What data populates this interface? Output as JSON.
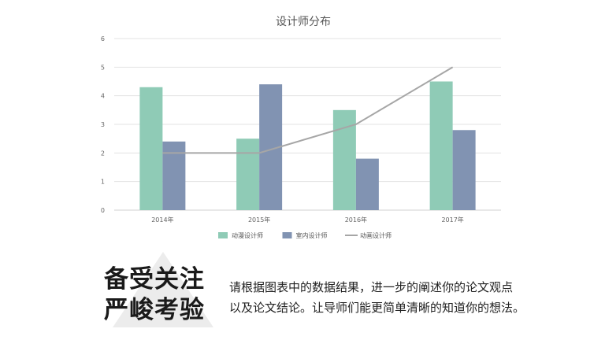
{
  "chart_data": {
    "type": "bar",
    "title": "设计师分布",
    "categories": [
      "2014年",
      "2015年",
      "2016年",
      "2017年"
    ],
    "series": [
      {
        "name": "动漫设计师",
        "type": "bar",
        "color": "#8fcbb6",
        "values": [
          4.3,
          2.5,
          3.5,
          4.5
        ]
      },
      {
        "name": "室内设计师",
        "type": "bar",
        "color": "#8193b2",
        "values": [
          2.4,
          4.4,
          1.8,
          2.8
        ]
      },
      {
        "name": "动画设计师",
        "type": "line",
        "color": "#a6a6a6",
        "values": [
          2,
          2,
          3,
          5
        ]
      }
    ],
    "ylim": [
      0,
      6
    ],
    "yticks": [
      0,
      1,
      2,
      3,
      4,
      5,
      6
    ],
    "grid": true,
    "legend_position": "bottom"
  },
  "text": {
    "headline_line1": "备受关注",
    "headline_line2": "严峻考验",
    "paragraph_line1": "请根据图表中的数据结果，进一步的阐述你的论文观点",
    "paragraph_line2": "以及论文结论。让导师们能更简单清晰的知道你的想法。"
  },
  "colors": {
    "grid": "#e3e3e3",
    "axis": "#d0d0d0",
    "triangle": "#ececec"
  }
}
